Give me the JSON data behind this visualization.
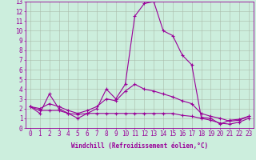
{
  "xlabel": "Windchill (Refroidissement éolien,°C)",
  "xlim": [
    -0.5,
    23.5
  ],
  "ylim": [
    0,
    13
  ],
  "xticks": [
    0,
    1,
    2,
    3,
    4,
    5,
    6,
    7,
    8,
    9,
    10,
    11,
    12,
    13,
    14,
    15,
    16,
    17,
    18,
    19,
    20,
    21,
    22,
    23
  ],
  "yticks": [
    0,
    1,
    2,
    3,
    4,
    5,
    6,
    7,
    8,
    9,
    10,
    11,
    12,
    13
  ],
  "line_color": "#990099",
  "bg_color": "#cceedd",
  "grid_color": "#aabbaa",
  "series": [
    [
      2.2,
      1.5,
      3.5,
      2.0,
      1.5,
      1.0,
      1.5,
      2.0,
      4.0,
      3.0,
      4.5,
      11.5,
      12.8,
      13.0,
      10.0,
      9.5,
      7.5,
      6.5,
      1.1,
      1.0,
      0.4,
      0.8,
      0.9,
      1.2
    ],
    [
      2.2,
      2.0,
      2.5,
      2.2,
      1.8,
      1.5,
      1.8,
      2.2,
      3.0,
      2.8,
      3.8,
      4.5,
      4.0,
      3.8,
      3.5,
      3.2,
      2.8,
      2.5,
      1.5,
      1.2,
      1.0,
      0.7,
      0.8,
      1.2
    ],
    [
      2.2,
      1.8,
      1.8,
      1.8,
      1.5,
      1.4,
      1.5,
      1.5,
      1.5,
      1.5,
      1.5,
      1.5,
      1.5,
      1.5,
      1.5,
      1.5,
      1.3,
      1.2,
      1.0,
      0.8,
      0.5,
      0.4,
      0.6,
      1.0
    ]
  ],
  "tick_fontsize": 5.5,
  "xlabel_fontsize": 5.5,
  "linewidth": 0.8,
  "markersize": 2.0
}
